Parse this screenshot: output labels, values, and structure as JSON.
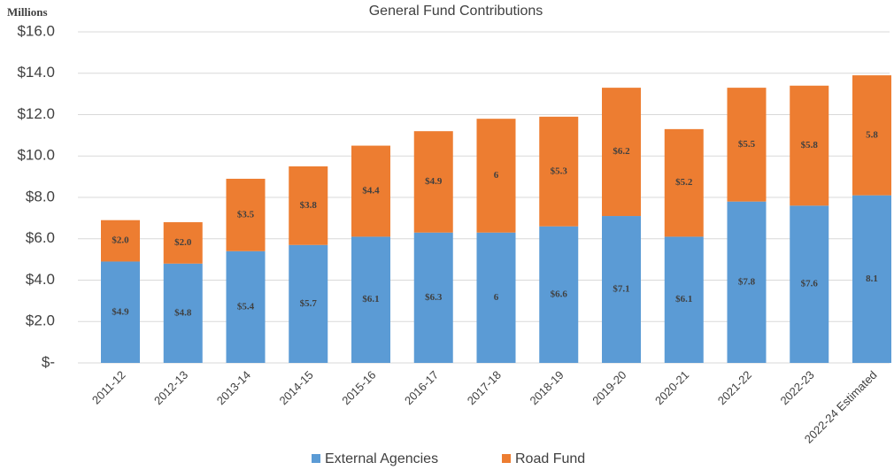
{
  "chart_data": {
    "type": "stacked_bar",
    "title": "General Fund Contributions",
    "y_axis_label": "Millions",
    "categories": [
      "2011-12",
      "2012-13",
      "2013-14",
      "2014-15",
      "2015-16",
      "2016-17",
      "2017-18",
      "2018-19",
      "2019-20",
      "2020-21",
      "2021-22",
      "2022-23",
      "2022-24 Estimated"
    ],
    "series": [
      {
        "name": "External Agencies",
        "color": "#5b9bd5",
        "values": [
          4.9,
          4.8,
          5.4,
          5.7,
          6.1,
          6.3,
          6.3,
          6.6,
          7.1,
          6.1,
          7.8,
          7.6,
          8.1
        ],
        "value_labels": [
          "$4.9",
          "$4.8",
          "$5.4",
          "$5.7",
          "$6.1",
          "$6.3",
          "6",
          "$6.6",
          "$7.1",
          "$6.1",
          "$7.8",
          "$7.6",
          "8.1"
        ]
      },
      {
        "name": "Road Fund",
        "color": "#ed7d31",
        "values": [
          2.0,
          2.0,
          3.5,
          3.8,
          4.4,
          4.9,
          5.5,
          5.3,
          6.2,
          5.2,
          5.5,
          5.8,
          5.8
        ],
        "value_labels": [
          "$2.0",
          "$2.0",
          "$3.5",
          "$3.8",
          "$4.4",
          "$4.9",
          "6",
          "$5.3",
          "$6.2",
          "$5.2",
          "$5.5",
          "$5.8",
          "5.8"
        ]
      }
    ],
    "ylim": [
      0,
      16
    ],
    "yticks": [
      {
        "value": 0,
        "label": "$-"
      },
      {
        "value": 2,
        "label": "$2.0"
      },
      {
        "value": 4,
        "label": "$4.0"
      },
      {
        "value": 6,
        "label": "$6.0"
      },
      {
        "value": 8,
        "label": "$8.0"
      },
      {
        "value": 10,
        "label": "$10.0"
      },
      {
        "value": 12,
        "label": "$12.0"
      },
      {
        "value": 14,
        "label": "$14.0"
      },
      {
        "value": 16,
        "label": "$16.0"
      }
    ],
    "grid": true,
    "legend": "bottom"
  }
}
